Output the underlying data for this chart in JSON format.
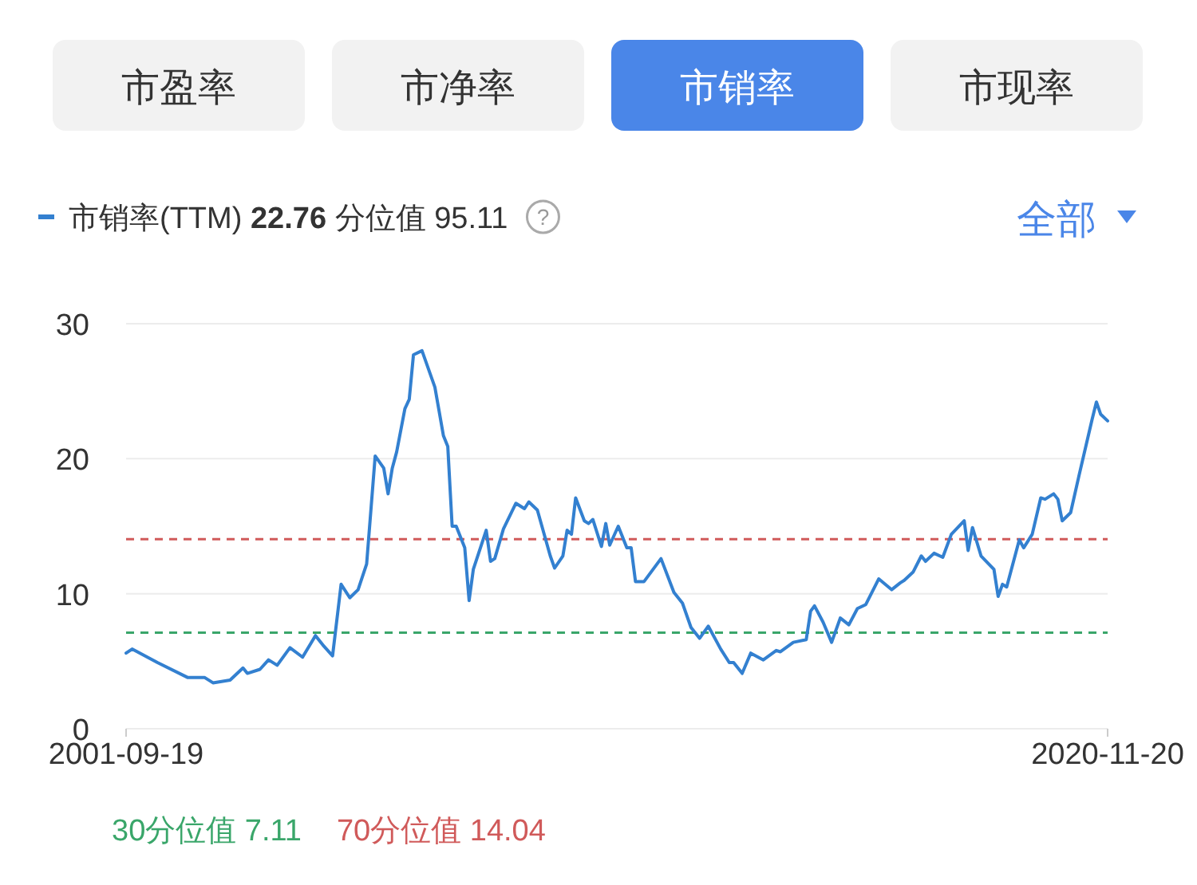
{
  "chart_data": {
    "type": "line",
    "annotations": [
      "市盈率",
      "市净率",
      "市销率",
      "市现率",
      "22.76",
      "分位值 95.11",
      "全部",
      "?"
    ],
    "x": [
      "2001-09-19",
      "2001-11",
      "2002-05",
      "2002-12",
      "2003-04",
      "2003-06",
      "2003-10",
      "2004-01",
      "2004-02",
      "2004-05",
      "2004-07",
      "2004-09",
      "2004-12",
      "2005-03",
      "2005-06",
      "2005-08",
      "2005-10",
      "2005-12",
      "2006-02",
      "2006-04",
      "2006-06",
      "2006-08",
      "2006-10",
      "2006-11",
      "2006-12",
      "2007-01",
      "2007-03",
      "2007-04",
      "2007-05",
      "2007-07",
      "2007-10",
      "2007-12",
      "2008-01",
      "2008-02",
      "2008-03",
      "2008-05",
      "2008-06",
      "2008-07",
      "2008-10",
      "2008-11",
      "2008-12",
      "2009-02",
      "2009-05",
      "2009-07",
      "2009-08",
      "2009-10",
      "2010-01",
      "2010-02",
      "2010-04",
      "2010-05",
      "2010-06",
      "2010-07",
      "2010-09",
      "2010-10",
      "2010-11",
      "2011-01",
      "2011-02",
      "2011-03",
      "2011-05",
      "2011-07",
      "2011-08",
      "2011-09",
      "2011-11",
      "2012-03",
      "2012-06",
      "2012-08",
      "2012-10",
      "2012-12",
      "2013-02",
      "2013-05",
      "2013-07",
      "2013-08",
      "2013-10",
      "2013-12",
      "2014-03",
      "2014-06",
      "2014-07",
      "2014-10",
      "2015-01",
      "2015-02",
      "2015-03",
      "2015-05",
      "2015-07",
      "2015-09",
      "2015-11",
      "2016-01",
      "2016-03",
      "2016-06",
      "2016-09",
      "2016-11",
      "2016-12",
      "2017-02",
      "2017-04",
      "2017-05",
      "2017-07",
      "2017-09",
      "2017-11",
      "2018-02",
      "2018-03",
      "2018-04",
      "2018-06",
      "2018-09",
      "2018-10",
      "2018-11",
      "2018-12",
      "2019-03",
      "2019-04",
      "2019-06",
      "2019-08",
      "2019-09",
      "2019-11",
      "2019-12",
      "2020-01",
      "2020-03",
      "2020-05",
      "2020-08",
      "2020-09",
      "2020-10",
      "2020-11-20"
    ],
    "xlim": [
      "2001-09-19",
      "2020-11-20"
    ],
    "xticks": [
      "2001-09-19",
      "2020-11-20"
    ],
    "series": [
      {
        "name": "市销率(TTM)",
        "color": "#3380d0",
        "values": [
          5.6,
          5.9,
          4.9,
          3.8,
          3.8,
          3.4,
          3.6,
          4.5,
          4.1,
          4.4,
          5.1,
          4.7,
          6.0,
          5.3,
          6.9,
          6.1,
          5.4,
          10.7,
          9.7,
          10.3,
          12.2,
          20.2,
          19.3,
          17.4,
          19.3,
          20.5,
          23.7,
          24.4,
          27.7,
          28.0,
          25.3,
          21.7,
          20.9,
          15.0,
          15.0,
          13.4,
          9.5,
          11.8,
          14.7,
          12.4,
          12.6,
          14.8,
          16.7,
          16.3,
          16.8,
          16.2,
          12.8,
          11.9,
          12.8,
          14.7,
          14.4,
          17.1,
          15.4,
          15.2,
          15.5,
          13.5,
          15.2,
          13.6,
          15.0,
          13.4,
          13.4,
          10.9,
          10.9,
          12.6,
          10.1,
          9.3,
          7.5,
          6.7,
          7.6,
          5.9,
          4.9,
          4.9,
          4.1,
          5.6,
          5.1,
          5.8,
          5.7,
          6.4,
          6.6,
          8.7,
          9.1,
          7.9,
          6.4,
          8.2,
          7.7,
          8.9,
          9.2,
          11.1,
          10.3,
          10.8,
          11.0,
          11.6,
          12.8,
          12.4,
          13.0,
          12.7,
          14.4,
          15.4,
          13.2,
          14.9,
          12.8,
          11.8,
          9.8,
          10.7,
          10.5,
          14.0,
          13.4,
          14.4,
          17.1,
          17.0,
          17.4,
          17.0,
          15.4,
          16.0,
          18.8,
          22.9,
          24.2,
          23.3,
          22.8
        ]
      }
    ],
    "ylim": [
      0,
      30
    ],
    "yticks": [
      0,
      10,
      20,
      30
    ],
    "grid": "y",
    "legend": "top left",
    "ref_lines": [
      {
        "axis": "y",
        "value": 7.11,
        "label": "30分位值 7.11",
        "color": "#3aa66a",
        "line_style": "dashed"
      },
      {
        "axis": "y",
        "value": 14.04,
        "label": "70分位值 14.04",
        "color": "#d05a5a",
        "line_style": "dashed"
      }
    ]
  }
}
